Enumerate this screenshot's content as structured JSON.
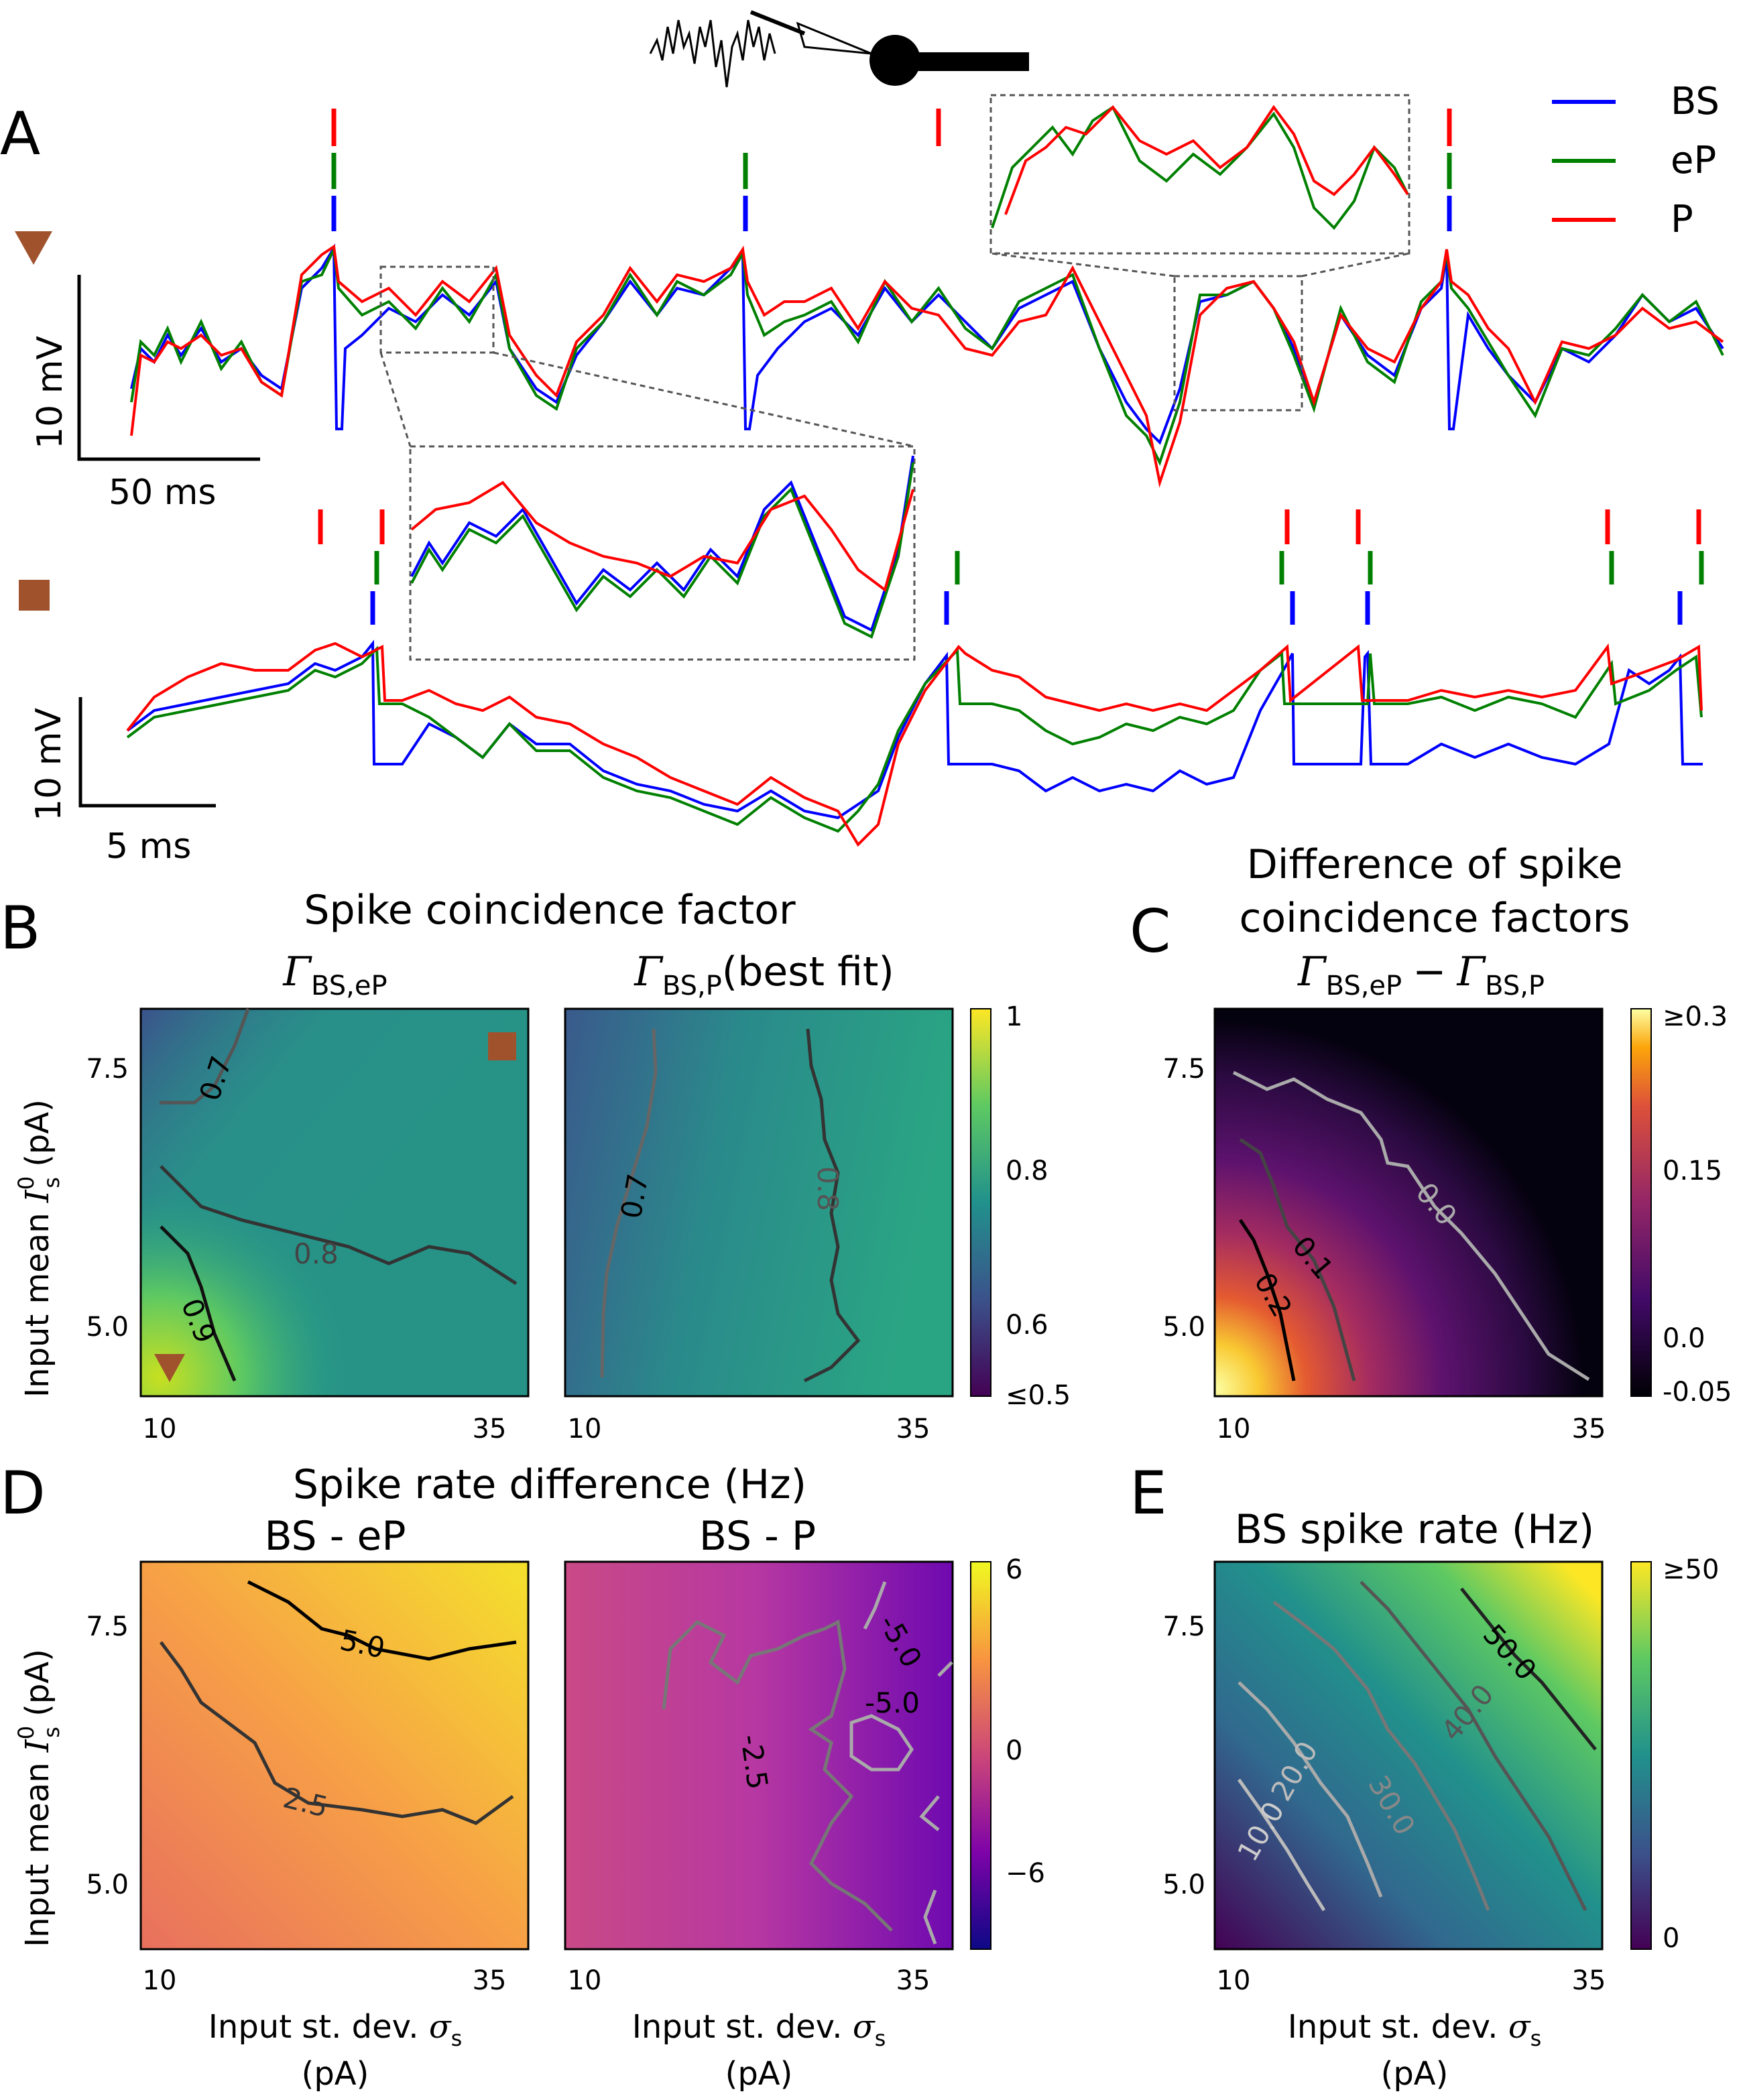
{
  "panels": {
    "A": {
      "letter": "A",
      "legend": [
        {
          "label": "BS",
          "color": "#0000ff"
        },
        {
          "label": "eP",
          "color": "#008000"
        },
        {
          "label": "P",
          "color": "#ff0000"
        }
      ],
      "top_scale": {
        "v": "10 mV",
        "t": "50 ms"
      },
      "bottom_scale": {
        "v": "10 mV",
        "t": "5 ms"
      },
      "markers": {
        "triangle_color": "#a0522d",
        "square_color": "#a0522d"
      }
    },
    "B": {
      "letter": "B",
      "title": "Spike coincidence factor",
      "sub_left_main": "Γ",
      "sub_left_sub": "BS,eP",
      "sub_right_main": "Γ",
      "sub_right_sub": "BS,P",
      "sub_right_suffix": "(best fit)",
      "colorbar_ticks": [
        "1",
        "0.8",
        "0.6",
        "≤0.5"
      ],
      "contour_left": [
        "0.7",
        "0.8",
        "0.9"
      ],
      "contour_right": [
        "0.7",
        "0.8"
      ]
    },
    "C": {
      "letter": "C",
      "title_line1": "Difference of spike",
      "title_line2": "coincidence factors",
      "sub_a": "Γ",
      "sub_a_sub": "BS,eP",
      "sub_minus": "−",
      "sub_b": "Γ",
      "sub_b_sub": "BS,P",
      "colorbar_ticks": [
        "≥0.3",
        "0.15",
        "0.0",
        "-0.05"
      ],
      "contours": [
        "0.0",
        "0.1",
        "0.2"
      ]
    },
    "D": {
      "letter": "D",
      "title": "Spike rate difference (Hz)",
      "sub_left": "BS - eP",
      "sub_right": "BS - P",
      "colorbar_ticks": [
        "6",
        "0",
        "−6"
      ],
      "contour_left": [
        "5.0",
        "2.5"
      ],
      "contour_right": [
        "-5.0",
        "-5.0",
        "-2.5"
      ]
    },
    "E": {
      "letter": "E",
      "title": "BS spike rate (Hz)",
      "colorbar_ticks": [
        "≥50",
        "0"
      ],
      "contours": [
        "10.0",
        "20.0",
        "30.0",
        "40.0",
        "50.0"
      ]
    }
  },
  "axes": {
    "ylabel_main": "Input mean ",
    "ylabel_sym": "I",
    "ylabel_sup": "0",
    "ylabel_sub": "s",
    "ylabel_unit": " (pA)",
    "yticks": [
      "7.5",
      "5.0"
    ],
    "xticks": [
      "10",
      "35"
    ],
    "xlabel_main": "Input st. dev. ",
    "xlabel_sym": "σ",
    "xlabel_sub": "s",
    "xlabel_unit": "(pA)"
  },
  "colors": {
    "BS": "#0000ff",
    "eP": "#008000",
    "P": "#ff0000",
    "marker": "#a0522d"
  }
}
